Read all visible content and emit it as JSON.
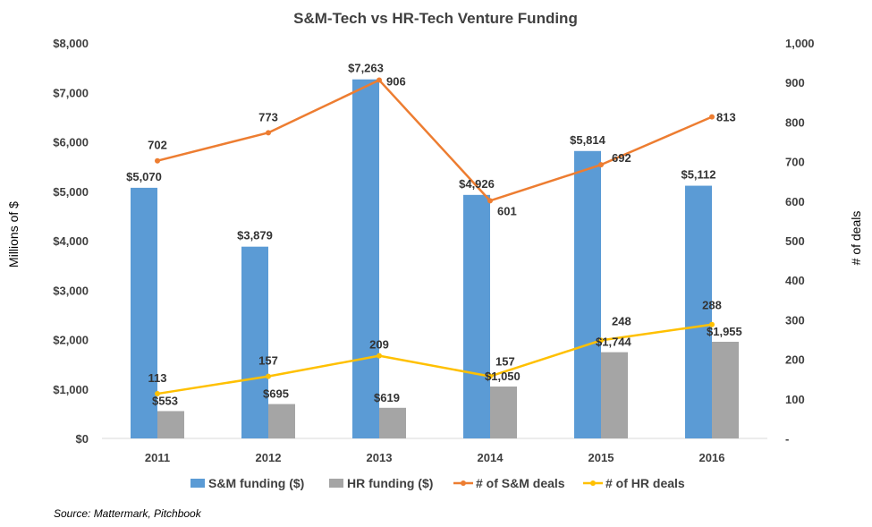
{
  "colors": {
    "sm_funding": "#5B9BD5",
    "hr_funding": "#A5A5A5",
    "sm_deals": "#ED7D31",
    "hr_deals": "#FFC000"
  },
  "source_text": "Source: Mattermark,  Pitchbook",
  "chart_data": {
    "type": "bar",
    "title": "S&M-Tech vs HR-Tech Venture Funding",
    "xlabel": "",
    "ylabel": "Millions of $",
    "y2label": "# of deals",
    "categories": [
      "2011",
      "2012",
      "2013",
      "2014",
      "2015",
      "2016"
    ],
    "ylim": [
      0,
      8000
    ],
    "y2lim": [
      0,
      1000
    ],
    "yticks": [
      "$0",
      "$1,000",
      "$2,000",
      "$3,000",
      "$4,000",
      "$5,000",
      "$6,000",
      "$7,000",
      "$8,000"
    ],
    "y2ticks": [
      "-",
      "100",
      "200",
      "300",
      "400",
      "500",
      "600",
      "700",
      "800",
      "900",
      "1,000"
    ],
    "grid": false,
    "legend_position": "bottom",
    "series": [
      {
        "name": "S&M funding ($)",
        "kind": "bar",
        "axis": "left",
        "values": [
          5070,
          3879,
          7263,
          4926,
          5814,
          5112
        ],
        "labels": [
          "$5,070",
          "$3,879",
          "$7,263",
          "$4,926",
          "$5,814",
          "$5,112"
        ]
      },
      {
        "name": "HR funding ($)",
        "kind": "bar",
        "axis": "left",
        "values": [
          553,
          695,
          619,
          1050,
          1744,
          1955
        ],
        "labels": [
          "$553",
          "$695",
          "$619",
          "$1,050",
          "$1,744",
          "$1,955"
        ]
      },
      {
        "name": "# of S&M deals",
        "kind": "line",
        "axis": "right",
        "values": [
          702,
          773,
          906,
          601,
          692,
          813
        ],
        "labels": [
          "702",
          "773",
          "906",
          "601",
          "692",
          "813"
        ]
      },
      {
        "name": "# of HR deals",
        "kind": "line",
        "axis": "right",
        "values": [
          113,
          157,
          209,
          157,
          248,
          288
        ],
        "labels": [
          "113",
          "157",
          "209",
          "157",
          "248",
          "288"
        ]
      }
    ]
  }
}
